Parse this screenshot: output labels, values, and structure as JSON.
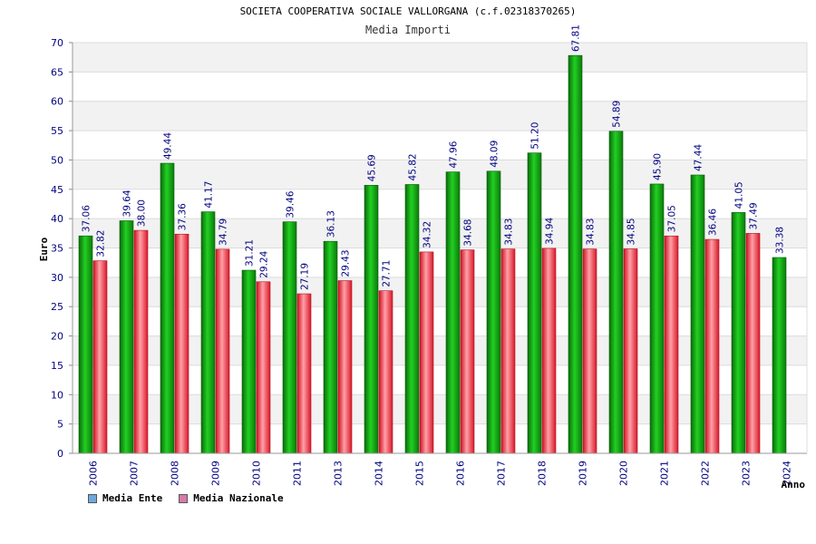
{
  "chart_data": {
    "type": "bar",
    "title": "SOCIETA COOPERATIVA SOCIALE VALLORGANA (c.f.02318370265)",
    "subtitle": "Media Importi",
    "xlabel": "Anno",
    "ylabel": "Euro",
    "ylim": [
      0,
      70
    ],
    "ytick_step": 5,
    "grid": true,
    "legend_position": "bottom-left",
    "categories": [
      "2006",
      "2007",
      "2008",
      "2009",
      "2010",
      "2011",
      "2013",
      "2014",
      "2015",
      "2016",
      "2017",
      "2018",
      "2019",
      "2020",
      "2021",
      "2022",
      "2023",
      "2024"
    ],
    "series": [
      {
        "name": "Media Ente",
        "color": "#00b000",
        "legend_color": "#6fa8dc",
        "values": [
          37.06,
          39.64,
          49.44,
          41.17,
          31.21,
          39.46,
          36.13,
          45.69,
          45.82,
          47.96,
          48.09,
          51.2,
          67.81,
          54.89,
          45.9,
          47.44,
          41.05,
          33.38
        ],
        "labels": [
          "37.06",
          "39.64",
          "49.44",
          "41.17",
          "31.21",
          "39.46",
          "36.13",
          "45.69",
          "45.82",
          "47.96",
          "48.09",
          "51.20",
          "67.81",
          "54.89",
          "45.90",
          "47.44",
          "41.05",
          "33.38"
        ]
      },
      {
        "name": "Media Nazionale",
        "color": "#e8202a",
        "legend_color": "#d87aa8",
        "values": [
          32.82,
          38.0,
          37.36,
          34.79,
          29.24,
          27.19,
          29.43,
          27.71,
          34.32,
          34.68,
          34.83,
          34.94,
          34.83,
          34.85,
          37.05,
          36.46,
          37.49,
          null
        ],
        "labels": [
          "32.82",
          "38.00",
          "37.36",
          "34.79",
          "29.24",
          "27.19",
          "29.43",
          "27.71",
          "34.32",
          "34.68",
          "34.83",
          "34.94",
          "34.83",
          "34.85",
          "37.05",
          "36.46",
          "37.49",
          ""
        ]
      }
    ]
  }
}
